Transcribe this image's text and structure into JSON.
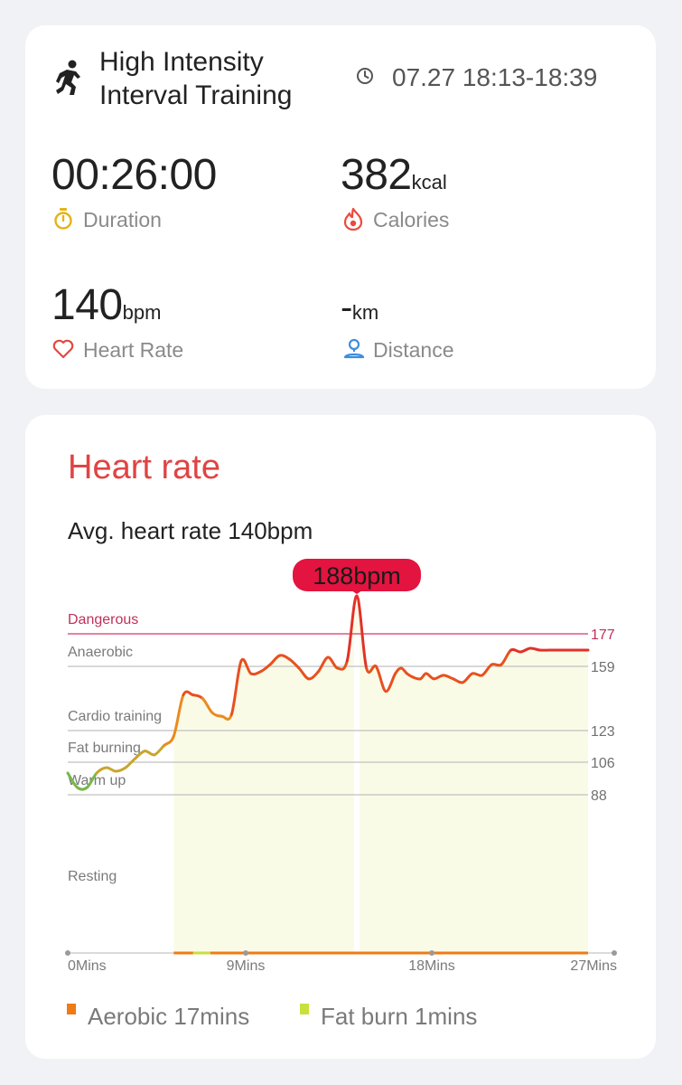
{
  "summary": {
    "activity_icon": "running-person-icon",
    "title_line1": "High Intensity",
    "title_line2": "Interval Training",
    "time_icon": "clock-icon",
    "time_range": "07.27 18:13-18:39",
    "duration": {
      "value": "00:26:00",
      "label": "Duration",
      "icon": "stopwatch-icon",
      "icon_color": "#e5b316"
    },
    "calories": {
      "value": "382",
      "unit": "kcal",
      "label": "Calories",
      "icon": "flame-icon",
      "icon_color": "#ec4a3a"
    },
    "heart_rate": {
      "value": "140",
      "unit": "bpm",
      "label": "Heart Rate",
      "icon": "heart-icon",
      "icon_color": "#e3493f"
    },
    "distance": {
      "value": "-",
      "unit": "km",
      "label": "Distance",
      "icon": "location-pin-icon",
      "icon_color": "#3d8de0"
    }
  },
  "heart_section": {
    "title": "Heart rate",
    "avg_text": "Avg. heart rate 140bpm",
    "peak_label": "188bpm",
    "legend": [
      {
        "label": "Aerobic 17mins",
        "color": "#f07a16"
      },
      {
        "label": "Fat burn 1mins",
        "color": "#c8df3c"
      }
    ]
  },
  "chart_data": {
    "type": "line",
    "title": "Heart rate",
    "xlabel": "",
    "ylabel": "",
    "x_ticks": [
      "0Mins",
      "9Mins",
      "18Mins",
      "27Mins"
    ],
    "xlim": [
      0,
      27
    ],
    "ylim": [
      0,
      188
    ],
    "zones": [
      {
        "name": "Dangerous",
        "threshold": 177,
        "color": "#d63864"
      },
      {
        "name": "Anaerobic",
        "threshold": 159,
        "color": "#c0c0c0"
      },
      {
        "name": "Cardio training",
        "threshold": 123,
        "color": "#c0c0c0"
      },
      {
        "name": "Fat burning",
        "threshold": 106,
        "color": "#c0c0c0"
      },
      {
        "name": "Warm up",
        "threshold": 88,
        "color": "#c0c0c0"
      },
      {
        "name": "Resting",
        "threshold": null,
        "color": "#c0c0c0"
      }
    ],
    "series": [
      {
        "x": [
          0,
          0.5,
          1,
          1.5,
          2,
          2.5,
          3,
          3.5,
          4,
          4.5,
          5,
          5.5,
          6,
          6.5,
          7,
          7.5,
          8,
          8.5,
          9,
          9.5,
          10,
          10.5,
          11,
          11.5,
          12,
          12.5,
          13,
          13.5,
          14,
          14.5,
          15,
          15.5,
          16,
          16.5,
          17,
          17.3,
          17.6,
          17.9,
          18.3,
          18.6,
          19,
          19.5,
          20,
          20.5,
          21,
          21.5,
          22,
          22.5,
          23,
          23.5,
          24,
          24.5,
          25,
          25.5,
          26,
          26.5,
          27
        ],
        "values": [
          100,
          92,
          92,
          100,
          103,
          101,
          103,
          108,
          112,
          110,
          115,
          120,
          143,
          143,
          141,
          133,
          131,
          132,
          162,
          155,
          156,
          160,
          165,
          163,
          158,
          152,
          156,
          164,
          158,
          162,
          188,
          158,
          159,
          145,
          155,
          158,
          155,
          153,
          152,
          155,
          152,
          154,
          152,
          150,
          155,
          154,
          160,
          160,
          168,
          167,
          169,
          168,
          168,
          168,
          168,
          168,
          168
        ],
        "peak": {
          "x": 15,
          "y": 188
        }
      }
    ]
  }
}
